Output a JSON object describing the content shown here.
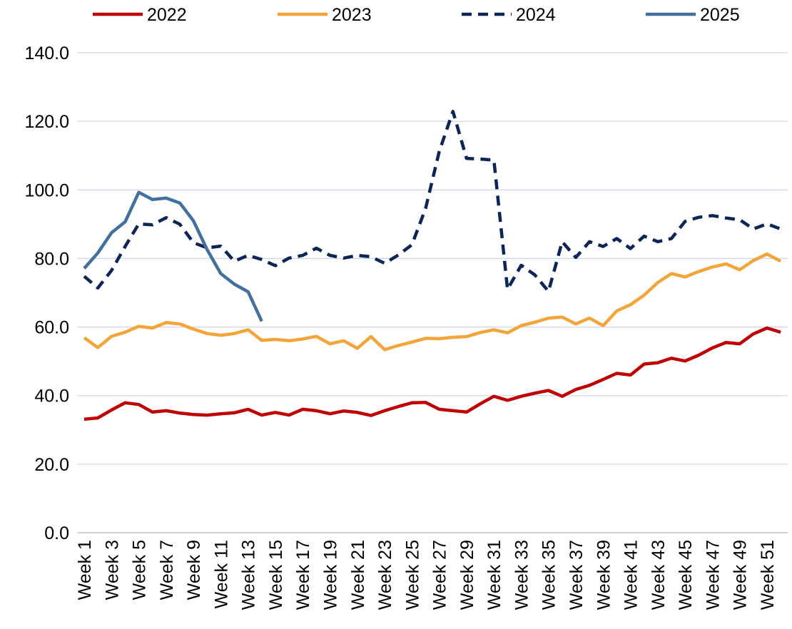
{
  "chart_data": {
    "type": "line",
    "categories": [
      "Week 1",
      null,
      "Week 3",
      null,
      "Week 5",
      null,
      "Week 7",
      null,
      "Week 9",
      null,
      "Week 11",
      null,
      "Week 13",
      null,
      "Week 15",
      null,
      "Week 17",
      null,
      "Week 19",
      null,
      "Week 21",
      null,
      "Week 23",
      null,
      "Week 25",
      null,
      "Week 27",
      null,
      "Week 29",
      null,
      "Week 31",
      null,
      "Week 33",
      null,
      "Week 35",
      null,
      "Week 37",
      null,
      "Week 39",
      null,
      "Week 41",
      null,
      "Week 43",
      null,
      "Week 45",
      null,
      "Week 47",
      null,
      "Week 49",
      null,
      "Week 51",
      null
    ],
    "series": [
      {
        "name": "2022",
        "color": "#c00000",
        "dash": false,
        "values": [
          33.1,
          33.5,
          35.8,
          37.9,
          37.4,
          35.2,
          35.6,
          34.9,
          34.5,
          34.3,
          34.7,
          35.0,
          36.0,
          34.3,
          35.1,
          34.3,
          36.0,
          35.6,
          34.7,
          35.5,
          35.1,
          34.2,
          35.6,
          36.8,
          37.9,
          38.0,
          36.0,
          35.6,
          35.2,
          37.6,
          39.8,
          38.6,
          39.8,
          40.7,
          41.5,
          39.8,
          41.8,
          43.0,
          44.7,
          46.5,
          46.0,
          49.2,
          49.6,
          50.9,
          50.1,
          51.8,
          53.9,
          55.5,
          55.1,
          58.0,
          59.7,
          58.5
        ]
      },
      {
        "name": "2023",
        "color": "#f4a53a",
        "dash": false,
        "values": [
          56.9,
          54.0,
          57.3,
          58.5,
          60.2,
          59.7,
          61.3,
          60.9,
          59.4,
          58.1,
          57.6,
          58.1,
          59.2,
          56.1,
          56.4,
          56.0,
          56.5,
          57.3,
          55.1,
          56.0,
          53.8,
          57.2,
          53.4,
          54.6,
          55.6,
          56.7,
          56.6,
          57.0,
          57.2,
          58.4,
          59.2,
          58.3,
          60.4,
          61.4,
          62.6,
          62.9,
          60.9,
          62.6,
          60.4,
          64.7,
          66.5,
          69.3,
          73.0,
          75.6,
          74.6,
          76.2,
          77.5,
          78.4,
          76.7,
          79.4,
          81.3,
          79.2
        ]
      },
      {
        "name": "2024",
        "color": "#0c2557",
        "dash": true,
        "values": [
          74.8,
          71.4,
          76.5,
          83.5,
          90.1,
          89.8,
          91.9,
          90.0,
          84.6,
          83.1,
          83.6,
          79.2,
          80.9,
          79.7,
          77.9,
          80.1,
          80.9,
          83.0,
          80.9,
          80.1,
          80.9,
          80.5,
          78.6,
          81.0,
          84.0,
          94.6,
          111.2,
          122.9,
          109.2,
          109.0,
          108.7,
          71.0,
          78.0,
          75.2,
          70.4,
          84.9,
          80.3,
          84.9,
          83.5,
          85.8,
          82.9,
          86.5,
          84.9,
          85.8,
          90.8,
          92.0,
          92.5,
          91.8,
          91.3,
          88.6,
          90.1,
          88.6
        ]
      },
      {
        "name": "2025",
        "color": "#44709d",
        "dash": false,
        "values": [
          77.1,
          81.6,
          87.5,
          90.7,
          99.3,
          97.2,
          97.6,
          96.2,
          91.0,
          82.6,
          75.6,
          72.5,
          70.3,
          61.7,
          null,
          null,
          null,
          null,
          null,
          null,
          null,
          null,
          null,
          null,
          null,
          null,
          null,
          null,
          null,
          null,
          null,
          null,
          null,
          null,
          null,
          null,
          null,
          null,
          null,
          null,
          null,
          null,
          null,
          null,
          null,
          null,
          null,
          null,
          null,
          null,
          null,
          null
        ]
      }
    ],
    "ylim": [
      0,
      140
    ],
    "yticks": [
      {
        "value": 0,
        "label": "0.0"
      },
      {
        "value": 20,
        "label": "20.0"
      },
      {
        "value": 40,
        "label": "40.0"
      },
      {
        "value": 60,
        "label": "60.0"
      },
      {
        "value": 80,
        "label": "80.0"
      },
      {
        "value": 100,
        "label": "100.0"
      },
      {
        "value": 120,
        "label": "120.0"
      },
      {
        "value": 140,
        "label": "140.0"
      }
    ],
    "grid": true,
    "legend": "top"
  }
}
